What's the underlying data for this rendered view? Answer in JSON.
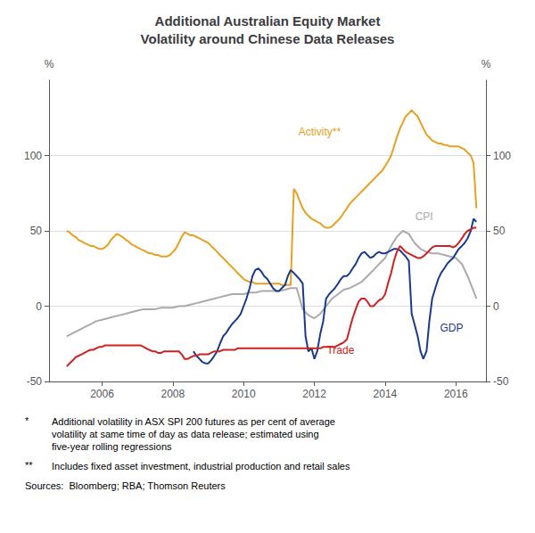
{
  "chart_data": {
    "type": "line",
    "title": "Additional Australian Equity Market\nVolatility around Chinese Data Releases",
    "ylabel": "%",
    "y2label": "%",
    "xlim": [
      2004.5,
      2016.85
    ],
    "xticks": [
      2006,
      2008,
      2010,
      2012,
      2014,
      2016
    ],
    "ylim": [
      -50,
      150
    ],
    "yticks": [
      -50,
      0,
      50,
      100
    ],
    "y2lim": [
      -50,
      150
    ],
    "y2ticks": [
      -50,
      0,
      50,
      100
    ],
    "grid": true,
    "footnotes": [
      [
        "*",
        "Additional volatility in ASX SPI 200 futures as per cent of average\nvolatility at same time of day as data release; estimated using\nfive-year rolling regressions"
      ],
      [
        "**",
        "Includes fixed asset investment, industrial production and retail sales"
      ],
      [
        "Sources:  Bloomberg; RBA; Thomson Reuters"
      ]
    ],
    "series": [
      {
        "name": "Activity**",
        "color": "#e8a020",
        "x": [
          2005.0,
          2005.08,
          2005.17,
          2005.25,
          2005.33,
          2005.42,
          2005.5,
          2005.58,
          2005.67,
          2005.75,
          2005.83,
          2005.92,
          2006.0,
          2006.08,
          2006.17,
          2006.25,
          2006.33,
          2006.42,
          2006.5,
          2006.58,
          2006.67,
          2006.75,
          2006.83,
          2006.92,
          2007.0,
          2007.08,
          2007.17,
          2007.25,
          2007.33,
          2007.42,
          2007.5,
          2007.58,
          2007.67,
          2007.75,
          2007.83,
          2007.92,
          2008.0,
          2008.08,
          2008.17,
          2008.25,
          2008.33,
          2008.42,
          2008.5,
          2008.58,
          2008.67,
          2008.75,
          2008.83,
          2008.92,
          2009.0,
          2009.08,
          2009.17,
          2009.25,
          2009.33,
          2009.42,
          2009.5,
          2009.58,
          2009.67,
          2009.75,
          2009.83,
          2009.92,
          2010.0,
          2010.08,
          2010.17,
          2010.25,
          2010.33,
          2010.42,
          2010.5,
          2010.58,
          2010.67,
          2010.75,
          2010.83,
          2010.92,
          2011.0,
          2011.08,
          2011.17,
          2011.25,
          2011.33,
          2011.42,
          2011.5,
          2011.58,
          2011.67,
          2011.75,
          2011.83,
          2011.92,
          2012.0,
          2012.08,
          2012.17,
          2012.25,
          2012.33,
          2012.42,
          2012.5,
          2012.58,
          2012.67,
          2012.75,
          2012.83,
          2012.92,
          2013.0,
          2013.08,
          2013.17,
          2013.25,
          2013.33,
          2013.42,
          2013.5,
          2013.58,
          2013.67,
          2013.75,
          2013.83,
          2013.92,
          2014.0,
          2014.08,
          2014.17,
          2014.25,
          2014.33,
          2014.42,
          2014.5,
          2014.58,
          2014.67,
          2014.75,
          2014.83,
          2014.92,
          2015.0,
          2015.08,
          2015.17,
          2015.25,
          2015.33,
          2015.42,
          2015.5,
          2015.58,
          2015.67,
          2015.75,
          2015.83,
          2015.92,
          2016.0,
          2016.08,
          2016.17,
          2016.25,
          2016.33,
          2016.42,
          2016.5,
          2016.58
        ],
        "values": [
          50,
          49,
          47,
          46,
          44,
          43,
          42,
          41,
          40,
          40,
          39,
          38,
          38,
          39,
          41,
          44,
          46,
          48,
          47,
          46,
          44,
          43,
          41,
          40,
          39,
          38,
          37,
          36,
          35,
          35,
          34,
          34,
          33,
          33,
          33,
          34,
          36,
          38,
          42,
          46,
          49,
          48,
          47,
          47,
          46,
          45,
          44,
          43,
          42,
          40,
          38,
          36,
          34,
          32,
          30,
          28,
          26,
          24,
          22,
          20,
          18,
          17,
          16,
          16,
          15,
          15,
          15,
          15,
          15,
          15,
          15,
          15,
          15,
          14,
          14,
          14,
          14,
          78,
          75,
          70,
          65,
          62,
          60,
          58,
          57,
          56,
          55,
          53,
          52,
          52,
          53,
          55,
          57,
          59,
          62,
          65,
          68,
          70,
          72,
          74,
          76,
          78,
          80,
          82,
          84,
          86,
          88,
          90,
          93,
          96,
          100,
          106,
          112,
          118,
          122,
          126,
          128,
          130,
          128,
          126,
          122,
          118,
          114,
          112,
          110,
          109,
          108,
          108,
          107,
          107,
          106,
          106,
          106,
          106,
          105,
          104,
          102,
          100,
          95,
          65
        ]
      },
      {
        "name": "CPI",
        "color": "#aaaaaa",
        "x": [
          2005.0,
          2005.17,
          2005.33,
          2005.5,
          2005.67,
          2005.83,
          2006.0,
          2006.17,
          2006.33,
          2006.5,
          2006.67,
          2006.83,
          2007.0,
          2007.17,
          2007.33,
          2007.5,
          2007.67,
          2007.83,
          2008.0,
          2008.17,
          2008.33,
          2008.5,
          2008.67,
          2008.83,
          2009.0,
          2009.17,
          2009.33,
          2009.5,
          2009.67,
          2009.83,
          2010.0,
          2010.17,
          2010.33,
          2010.5,
          2010.67,
          2010.83,
          2011.0,
          2011.17,
          2011.33,
          2011.5,
          2011.67,
          2011.83,
          2012.0,
          2012.17,
          2012.33,
          2012.5,
          2012.67,
          2012.83,
          2013.0,
          2013.17,
          2013.33,
          2013.5,
          2013.67,
          2013.83,
          2014.0,
          2014.17,
          2014.33,
          2014.5,
          2014.67,
          2014.83,
          2015.0,
          2015.17,
          2015.33,
          2015.5,
          2015.67,
          2015.83,
          2016.0,
          2016.17,
          2016.33,
          2016.5,
          2016.58
        ],
        "values": [
          -20,
          -18,
          -16,
          -14,
          -12,
          -10,
          -9,
          -8,
          -7,
          -6,
          -5,
          -4,
          -3,
          -2,
          -2,
          -2,
          -1,
          -1,
          -1,
          0,
          0,
          1,
          2,
          3,
          4,
          5,
          6,
          7,
          8,
          8,
          8,
          9,
          9,
          10,
          10,
          10,
          10,
          11,
          12,
          12,
          -2,
          -6,
          -8,
          -5,
          0,
          5,
          8,
          11,
          12,
          14,
          16,
          20,
          24,
          28,
          32,
          40,
          46,
          50,
          48,
          42,
          38,
          36,
          35,
          35,
          34,
          33,
          32,
          28,
          20,
          10,
          5
        ]
      },
      {
        "name": "GDP",
        "color": "#1a3a8c",
        "x": [
          2008.58,
          2008.67,
          2008.75,
          2008.83,
          2008.92,
          2009.0,
          2009.08,
          2009.17,
          2009.25,
          2009.33,
          2009.42,
          2009.5,
          2009.58,
          2009.67,
          2009.75,
          2009.83,
          2009.92,
          2010.0,
          2010.08,
          2010.17,
          2010.25,
          2010.33,
          2010.42,
          2010.5,
          2010.58,
          2010.67,
          2010.75,
          2010.83,
          2010.92,
          2011.0,
          2011.08,
          2011.17,
          2011.25,
          2011.33,
          2011.42,
          2011.5,
          2011.58,
          2011.67,
          2011.75,
          2011.83,
          2011.92,
          2012.0,
          2012.08,
          2012.17,
          2012.25,
          2012.33,
          2012.42,
          2012.5,
          2012.58,
          2012.67,
          2012.75,
          2012.83,
          2012.92,
          2013.0,
          2013.08,
          2013.17,
          2013.25,
          2013.33,
          2013.42,
          2013.5,
          2013.58,
          2013.67,
          2013.75,
          2013.83,
          2013.92,
          2014.0,
          2014.08,
          2014.17,
          2014.25,
          2014.33,
          2014.42,
          2014.5,
          2014.58,
          2014.67,
          2014.75,
          2014.83,
          2014.92,
          2015.0,
          2015.08,
          2015.17,
          2015.25,
          2015.33,
          2015.42,
          2015.5,
          2015.58,
          2015.67,
          2015.75,
          2015.83,
          2015.92,
          2016.0,
          2016.08,
          2016.17,
          2016.25,
          2016.33,
          2016.42,
          2016.5,
          2016.58
        ],
        "values": [
          -30,
          -33,
          -35,
          -37,
          -38,
          -38,
          -36,
          -33,
          -30,
          -25,
          -20,
          -18,
          -15,
          -12,
          -10,
          -8,
          -5,
          0,
          5,
          12,
          20,
          24,
          25,
          23,
          20,
          18,
          15,
          12,
          10,
          10,
          12,
          14,
          20,
          24,
          22,
          20,
          18,
          15,
          -20,
          -30,
          -28,
          -35,
          -30,
          -18,
          -10,
          5,
          8,
          10,
          12,
          15,
          18,
          20,
          20,
          22,
          25,
          28,
          32,
          35,
          36,
          34,
          32,
          33,
          35,
          36,
          35,
          35,
          36,
          37,
          38,
          38,
          37,
          35,
          33,
          30,
          -5,
          -12,
          -20,
          -30,
          -35,
          -30,
          -10,
          5,
          12,
          18,
          22,
          25,
          28,
          30,
          32,
          35,
          38,
          40,
          42,
          45,
          50,
          58,
          56
        ]
      },
      {
        "name": "Trade",
        "color": "#cc2222",
        "x": [
          2005.0,
          2005.08,
          2005.17,
          2005.25,
          2005.33,
          2005.42,
          2005.5,
          2005.58,
          2005.67,
          2005.75,
          2005.83,
          2005.92,
          2006.0,
          2006.08,
          2006.17,
          2006.25,
          2006.33,
          2006.42,
          2006.5,
          2006.58,
          2006.67,
          2006.75,
          2006.83,
          2006.92,
          2007.0,
          2007.08,
          2007.17,
          2007.25,
          2007.33,
          2007.42,
          2007.5,
          2007.58,
          2007.67,
          2007.75,
          2007.83,
          2007.92,
          2008.0,
          2008.08,
          2008.17,
          2008.25,
          2008.33,
          2008.42,
          2008.5,
          2008.58,
          2008.67,
          2008.75,
          2008.83,
          2008.92,
          2009.0,
          2009.08,
          2009.17,
          2009.25,
          2009.33,
          2009.42,
          2009.5,
          2009.58,
          2009.67,
          2009.75,
          2009.83,
          2009.92,
          2010.0,
          2010.08,
          2010.17,
          2010.25,
          2010.33,
          2010.42,
          2010.5,
          2010.58,
          2010.67,
          2010.75,
          2010.83,
          2010.92,
          2011.0,
          2011.08,
          2011.17,
          2011.25,
          2011.33,
          2011.42,
          2011.5,
          2011.58,
          2011.67,
          2011.75,
          2011.83,
          2011.92,
          2012.0,
          2012.08,
          2012.17,
          2012.25,
          2012.33,
          2012.42,
          2012.5,
          2012.58,
          2012.67,
          2012.75,
          2012.83,
          2012.92,
          2013.0,
          2013.08,
          2013.17,
          2013.25,
          2013.33,
          2013.42,
          2013.5,
          2013.58,
          2013.67,
          2013.75,
          2013.83,
          2013.92,
          2014.0,
          2014.08,
          2014.17,
          2014.25,
          2014.33,
          2014.42,
          2014.5,
          2014.58,
          2014.67,
          2014.75,
          2014.83,
          2014.92,
          2015.0,
          2015.08,
          2015.17,
          2015.25,
          2015.33,
          2015.42,
          2015.5,
          2015.58,
          2015.67,
          2015.75,
          2015.83,
          2015.92,
          2016.0,
          2016.08,
          2016.17,
          2016.25,
          2016.33,
          2016.42,
          2016.5,
          2016.58
        ],
        "values": [
          -40,
          -38,
          -36,
          -34,
          -33,
          -32,
          -31,
          -30,
          -29,
          -29,
          -28,
          -27,
          -27,
          -26,
          -26,
          -26,
          -26,
          -26,
          -26,
          -26,
          -26,
          -26,
          -26,
          -26,
          -26,
          -26,
          -27,
          -28,
          -29,
          -30,
          -30,
          -31,
          -31,
          -30,
          -30,
          -30,
          -30,
          -30,
          -30,
          -32,
          -35,
          -35,
          -34,
          -33,
          -33,
          -32,
          -32,
          -32,
          -32,
          -31,
          -30,
          -30,
          -30,
          -29,
          -29,
          -29,
          -29,
          -29,
          -28,
          -28,
          -28,
          -28,
          -28,
          -28,
          -28,
          -28,
          -28,
          -28,
          -28,
          -28,
          -28,
          -28,
          -28,
          -28,
          -28,
          -28,
          -28,
          -28,
          -28,
          -28,
          -28,
          -28,
          -28,
          -28,
          -28,
          -28,
          -28,
          -27,
          -27,
          -27,
          -27,
          -27,
          -26,
          -25,
          -24,
          -22,
          -15,
          -8,
          -2,
          3,
          5,
          5,
          3,
          0,
          0,
          2,
          4,
          5,
          8,
          15,
          22,
          30,
          36,
          40,
          38,
          36,
          35,
          34,
          33,
          32,
          32,
          33,
          35,
          37,
          39,
          40,
          40,
          40,
          40,
          40,
          40,
          39,
          40,
          42,
          45,
          48,
          50,
          51,
          52,
          52
        ]
      }
    ]
  }
}
